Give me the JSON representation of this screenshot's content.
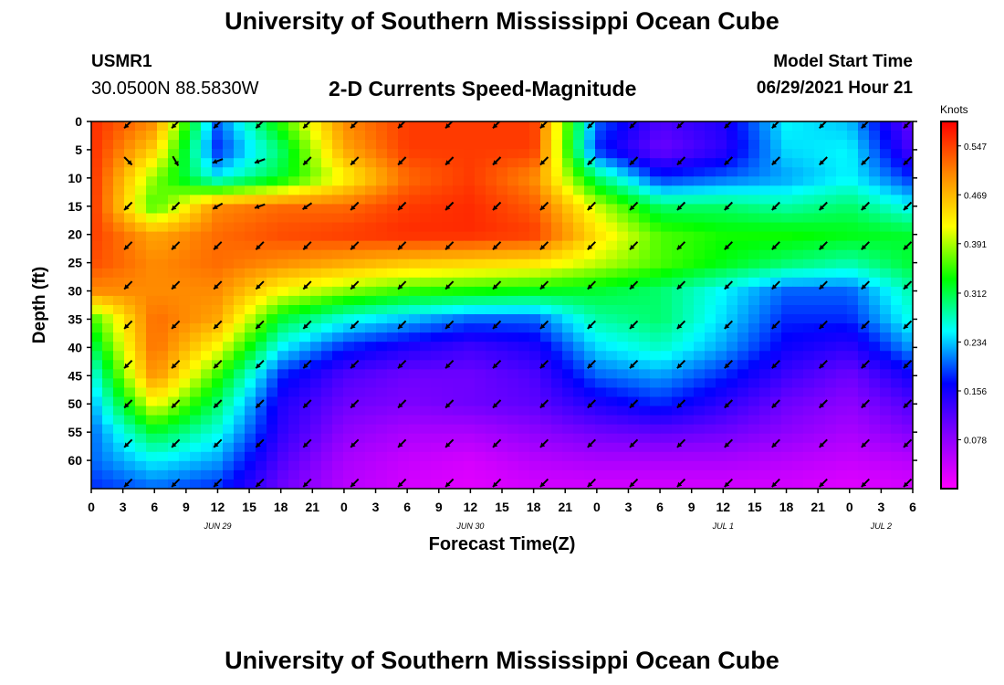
{
  "header": {
    "title": "University of Southern Mississippi Ocean Cube",
    "station": "USMR1",
    "coords": "30.0500N  88.5830W",
    "subtitle": "2-D Currents Speed-Magnitude",
    "model_start_label": "Model Start Time",
    "model_start_value": "06/29/2021 Hour 21"
  },
  "footer": {
    "title": "University of Southern Mississippi Ocean Cube"
  },
  "chart_data": {
    "type": "heatmap",
    "title": "2-D Currents Speed-Magnitude",
    "xlabel": "Forecast Time(Z)",
    "ylabel": "Depth (ft)",
    "units": "Knots",
    "x_unit": "hours",
    "x_range": [
      0,
      78
    ],
    "y_range": [
      0,
      65
    ],
    "y_inverted": true,
    "x_ticks": [
      "0",
      "3",
      "6",
      "9",
      "12",
      "15",
      "18",
      "21",
      "0",
      "3",
      "6",
      "9",
      "12",
      "15",
      "18",
      "21",
      "0",
      "3",
      "6",
      "9",
      "12",
      "15",
      "18",
      "21",
      "0",
      "3",
      "6"
    ],
    "y_ticks": [
      0,
      5,
      10,
      15,
      20,
      25,
      30,
      35,
      40,
      45,
      50,
      55,
      60
    ],
    "date_labels": [
      {
        "text": "JUN 29",
        "hour": 12
      },
      {
        "text": "JUN 30",
        "hour": 36
      },
      {
        "text": "JUL 1",
        "hour": 60
      },
      {
        "text": "JUL 2",
        "hour": 75
      }
    ],
    "colorbar": {
      "min": 0.0,
      "max": 0.586,
      "tick_labels": [
        "0.547",
        "0.469",
        "0.391",
        "0.312",
        "0.234",
        "0.156",
        "0.078"
      ],
      "colors": [
        "#ff00ff",
        "#8800ff",
        "#0000ff",
        "#00ffff",
        "#00ff00",
        "#ffff00",
        "#ff8800",
        "#ff0000"
      ]
    },
    "depths": [
      0,
      5,
      10,
      15,
      20,
      25,
      30,
      35,
      40,
      45,
      50,
      55,
      60,
      65
    ],
    "hours": [
      0,
      6,
      12,
      18,
      24,
      30,
      36,
      42,
      48,
      54,
      60,
      66,
      72,
      78
    ],
    "values": [
      [
        0.56,
        0.5,
        0.2,
        0.35,
        0.5,
        0.55,
        0.55,
        0.55,
        0.2,
        0.12,
        0.15,
        0.25,
        0.23,
        0.1
      ],
      [
        0.56,
        0.45,
        0.18,
        0.3,
        0.48,
        0.55,
        0.55,
        0.55,
        0.18,
        0.1,
        0.14,
        0.24,
        0.25,
        0.12
      ],
      [
        0.56,
        0.38,
        0.25,
        0.32,
        0.42,
        0.52,
        0.55,
        0.5,
        0.3,
        0.18,
        0.2,
        0.22,
        0.25,
        0.18
      ],
      [
        0.56,
        0.35,
        0.5,
        0.52,
        0.52,
        0.55,
        0.56,
        0.53,
        0.4,
        0.3,
        0.3,
        0.28,
        0.3,
        0.25
      ],
      [
        0.55,
        0.48,
        0.52,
        0.54,
        0.55,
        0.56,
        0.56,
        0.55,
        0.44,
        0.36,
        0.34,
        0.34,
        0.33,
        0.32
      ],
      [
        0.54,
        0.5,
        0.52,
        0.5,
        0.48,
        0.46,
        0.45,
        0.44,
        0.4,
        0.36,
        0.33,
        0.3,
        0.28,
        0.32
      ],
      [
        0.5,
        0.5,
        0.5,
        0.42,
        0.38,
        0.35,
        0.34,
        0.33,
        0.32,
        0.3,
        0.25,
        0.2,
        0.2,
        0.28
      ],
      [
        0.35,
        0.52,
        0.48,
        0.32,
        0.26,
        0.23,
        0.2,
        0.2,
        0.28,
        0.3,
        0.24,
        0.18,
        0.18,
        0.26
      ],
      [
        0.3,
        0.52,
        0.42,
        0.25,
        0.18,
        0.15,
        0.13,
        0.15,
        0.24,
        0.27,
        0.22,
        0.16,
        0.14,
        0.22
      ],
      [
        0.25,
        0.5,
        0.35,
        0.18,
        0.12,
        0.1,
        0.1,
        0.12,
        0.2,
        0.22,
        0.18,
        0.13,
        0.1,
        0.16
      ],
      [
        0.22,
        0.42,
        0.3,
        0.15,
        0.1,
        0.09,
        0.1,
        0.11,
        0.15,
        0.18,
        0.14,
        0.1,
        0.08,
        0.12
      ],
      [
        0.2,
        0.32,
        0.26,
        0.14,
        0.08,
        0.06,
        0.06,
        0.08,
        0.1,
        0.11,
        0.1,
        0.08,
        0.06,
        0.09
      ],
      [
        0.2,
        0.25,
        0.22,
        0.12,
        0.06,
        0.04,
        0.03,
        0.05,
        0.06,
        0.06,
        0.06,
        0.05,
        0.04,
        0.05
      ],
      [
        0.18,
        0.2,
        0.18,
        0.1,
        0.05,
        0.03,
        0.02,
        0.03,
        0.03,
        0.03,
        0.03,
        0.03,
        0.02,
        0.03
      ]
    ],
    "vectors": {
      "hours": [
        3.5,
        8,
        12,
        16,
        20.5,
        25,
        29.5,
        34,
        38.5,
        43,
        47.5,
        51.5,
        56,
        60.5,
        65,
        69.5,
        73.5,
        77.5
      ],
      "depths": [
        0.5,
        7,
        15,
        22,
        29,
        36,
        43,
        50,
        57,
        64
      ],
      "angles_deg": [
        [
          225,
          225,
          225,
          225,
          225,
          225,
          225,
          225,
          225,
          225,
          225,
          225,
          225,
          225,
          225,
          225,
          225,
          225
        ],
        [
          315,
          300,
          200,
          200,
          225,
          225,
          225,
          225,
          225,
          225,
          225,
          225,
          225,
          225,
          225,
          225,
          225,
          225
        ],
        [
          225,
          225,
          210,
          200,
          215,
          225,
          225,
          225,
          225,
          225,
          225,
          225,
          225,
          225,
          225,
          225,
          225,
          225
        ],
        [
          225,
          225,
          225,
          225,
          225,
          225,
          225,
          225,
          225,
          225,
          225,
          225,
          225,
          225,
          225,
          225,
          225,
          225
        ],
        [
          225,
          225,
          225,
          225,
          225,
          225,
          225,
          225,
          225,
          225,
          225,
          225,
          225,
          225,
          225,
          225,
          225,
          225
        ],
        [
          225,
          225,
          225,
          225,
          225,
          225,
          225,
          225,
          225,
          225,
          225,
          225,
          225,
          225,
          225,
          225,
          225,
          225
        ],
        [
          225,
          225,
          225,
          225,
          225,
          225,
          225,
          225,
          225,
          225,
          225,
          225,
          225,
          225,
          225,
          225,
          225,
          225
        ],
        [
          225,
          225,
          225,
          225,
          225,
          225,
          225,
          225,
          225,
          225,
          225,
          225,
          225,
          225,
          225,
          225,
          225,
          225
        ],
        [
          225,
          225,
          225,
          225,
          225,
          225,
          225,
          225,
          225,
          225,
          225,
          225,
          225,
          225,
          225,
          225,
          225,
          225
        ],
        [
          225,
          225,
          225,
          225,
          225,
          225,
          225,
          225,
          225,
          225,
          225,
          225,
          225,
          225,
          225,
          225,
          225,
          225
        ]
      ]
    }
  }
}
